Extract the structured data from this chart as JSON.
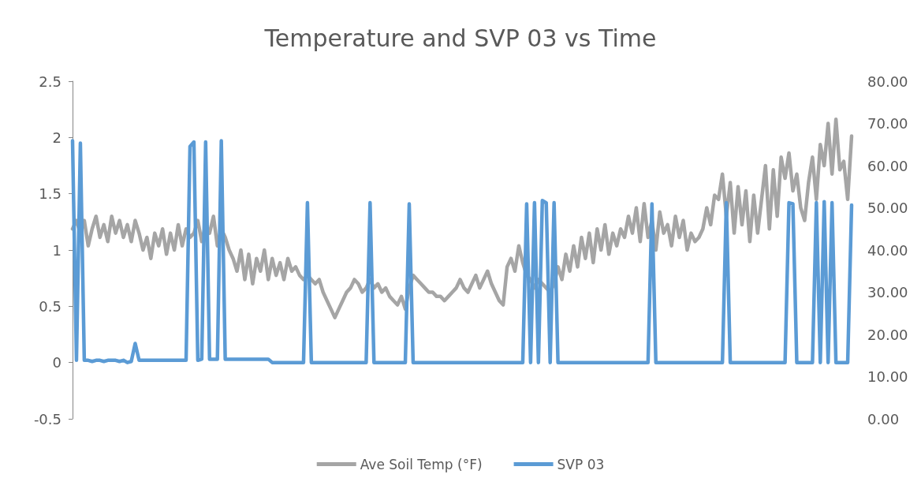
{
  "chart_data": {
    "type": "line",
    "title": "Temperature and SVP 03 vs Time",
    "categories": [
      null,
      null,
      null,
      null,
      null,
      null,
      null,
      null,
      null,
      null,
      null,
      null,
      null,
      null,
      null,
      null,
      null,
      null,
      null,
      null,
      null,
      null,
      null,
      null,
      null,
      null,
      null,
      null,
      null,
      null,
      null,
      null,
      null,
      null,
      null,
      null,
      null,
      null,
      null,
      null,
      null,
      null,
      null,
      null,
      null,
      null,
      null,
      null,
      null,
      null,
      null,
      null,
      null,
      null,
      null,
      null,
      null,
      null,
      null,
      null,
      null,
      null,
      null,
      null,
      null,
      null,
      null,
      null,
      null,
      null,
      null,
      null,
      null,
      null,
      null,
      null,
      null,
      null,
      null,
      null,
      null,
      null,
      null,
      null,
      null,
      null,
      null,
      null,
      null,
      null,
      null,
      null,
      null,
      null,
      null,
      null,
      null,
      null,
      null,
      null,
      null,
      null,
      null,
      null,
      null,
      null,
      null,
      null,
      null,
      null,
      null,
      null,
      null,
      null,
      null,
      null,
      null,
      null,
      null,
      null,
      null,
      null,
      null,
      null,
      null,
      null,
      null,
      null,
      null,
      null,
      null,
      null,
      null,
      null,
      null,
      null,
      null,
      null,
      null,
      null,
      null,
      null,
      null,
      null,
      null,
      null,
      null,
      null,
      null,
      null,
      null,
      null,
      null,
      null,
      null,
      null,
      null,
      null,
      null,
      null,
      null,
      null,
      null,
      null,
      null,
      null,
      null,
      null,
      null,
      null,
      null,
      null,
      null,
      null,
      null,
      null,
      null,
      null,
      null,
      null,
      null,
      null,
      null,
      null,
      null,
      null,
      null,
      null,
      null,
      null,
      null,
      null,
      null,
      null,
      null,
      null,
      null,
      null,
      null,
      null
    ],
    "series": [
      {
        "name": "Ave Soil Temp (°F)",
        "color": "#a5a5a5",
        "axis": "y2",
        "values": [
          45,
          47,
          44,
          47,
          41,
          45,
          48,
          43,
          46,
          42,
          48,
          44,
          47,
          43,
          46,
          42,
          47,
          44,
          40,
          43,
          38,
          44,
          41,
          45,
          39,
          44,
          40,
          46,
          41,
          45,
          43,
          44,
          47,
          42,
          46,
          44,
          48,
          41,
          45,
          43,
          40,
          38,
          35,
          40,
          33,
          39,
          32,
          38,
          35,
          40,
          33,
          38,
          34,
          37,
          33,
          38,
          35,
          36,
          34,
          33,
          34,
          33,
          32,
          33,
          30,
          28,
          26,
          24,
          26,
          28,
          30,
          31,
          33,
          32,
          30,
          31,
          33,
          31,
          32,
          30,
          31,
          29,
          28,
          27,
          29,
          26,
          31,
          34,
          33,
          32,
          31,
          30,
          30,
          29,
          29,
          28,
          29,
          30,
          31,
          33,
          31,
          30,
          32,
          34,
          31,
          33,
          35,
          32,
          30,
          28,
          27,
          36,
          38,
          35,
          41,
          37,
          34,
          33,
          31,
          33,
          32,
          31,
          30,
          32,
          36,
          33,
          39,
          35,
          41,
          36,
          43,
          38,
          44,
          37,
          45,
          40,
          46,
          39,
          44,
          41,
          45,
          43,
          48,
          44,
          50,
          42,
          51,
          43,
          47,
          40,
          49,
          44,
          46,
          41,
          48,
          43,
          47,
          40,
          44,
          42,
          43,
          45,
          50,
          46,
          53,
          52,
          58,
          48,
          56,
          44,
          55,
          46,
          54,
          42,
          53,
          44,
          52,
          60,
          45,
          59,
          48,
          62,
          57,
          63,
          54,
          58,
          50,
          47,
          56,
          62,
          52,
          65,
          60,
          70,
          58,
          71,
          59,
          61,
          52,
          67
        ]
      },
      {
        "name": "SVP 03",
        "color": "#5b9bd5",
        "values": [
          1.97,
          0.02,
          1.95,
          0.02,
          0.02,
          0.01,
          0.02,
          0.02,
          0.01,
          0.02,
          0.02,
          0.02,
          0.01,
          0.02,
          0.0,
          0.01,
          0.17,
          0.02,
          0.02,
          0.02,
          0.02,
          0.02,
          0.02,
          0.02,
          0.02,
          0.02,
          0.02,
          0.02,
          0.02,
          0.02,
          1.92,
          1.96,
          0.02,
          0.03,
          1.96,
          0.03,
          0.03,
          0.03,
          1.97,
          0.03,
          0.03,
          0.03,
          0.03,
          0.03,
          0.03,
          0.03,
          0.03,
          0.03,
          0.03,
          0.03,
          0.03,
          0.0,
          0.0,
          0.0,
          0.0,
          0.0,
          0.0,
          0.0,
          0.0,
          0.0,
          1.42,
          0.0,
          0.0,
          0.0,
          0.0,
          0.0,
          0.0,
          0.0,
          0.0,
          0.0,
          0.0,
          0.0,
          0.0,
          0.0,
          0.0,
          0.0,
          1.42,
          0.0,
          0.0,
          0.0,
          0.0,
          0.0,
          0.0,
          0.0,
          0.0,
          0.0,
          1.41,
          0.0,
          0.0,
          0.0,
          0.0,
          0.0,
          0.0,
          0.0,
          0.0,
          0.0,
          0.0,
          0.0,
          0.0,
          0.0,
          0.0,
          0.0,
          0.0,
          0.0,
          0.0,
          0.0,
          0.0,
          0.0,
          0.0,
          0.0,
          0.0,
          0.0,
          0.0,
          0.0,
          0.0,
          0.0,
          1.41,
          0.0,
          1.42,
          0.0,
          1.44,
          1.42,
          0.0,
          1.42,
          0.0,
          0.0,
          0.0,
          0.0,
          0.0,
          0.0,
          0.0,
          0.0,
          0.0,
          0.0,
          0.0,
          0.0,
          0.0,
          0.0,
          0.0,
          0.0,
          0.0,
          0.0,
          0.0,
          0.0,
          0.0,
          0.0,
          0.0,
          0.0,
          1.41,
          0.0,
          0.0,
          0.0,
          0.0,
          0.0,
          0.0,
          0.0,
          0.0,
          0.0,
          0.0,
          0.0,
          0.0,
          0.0,
          0.0,
          0.0,
          0.0,
          0.0,
          0.0,
          1.42,
          0.0,
          0.0,
          0.0,
          0.0,
          0.0,
          0.0,
          0.0,
          0.0,
          0.0,
          0.0,
          0.0,
          0.0,
          0.0,
          0.0,
          0.0,
          1.42,
          1.41,
          0.0,
          0.0,
          0.0,
          0.0,
          0.0,
          1.42,
          0.0,
          1.43,
          0.0,
          1.42,
          0.0,
          0.0,
          0.0,
          0.0,
          1.4
        ]
      }
    ],
    "ylim": [
      -0.5,
      2.5
    ],
    "yticks": [
      -0.5,
      0,
      0.5,
      1,
      1.5,
      2,
      2.5
    ],
    "y2lim": [
      0,
      80
    ],
    "y2ticks": [
      {
        "value": 0,
        "label": "0.00"
      },
      {
        "value": 10,
        "label": "10.00"
      },
      {
        "value": 20,
        "label": "20.00"
      },
      {
        "value": 30,
        "label": "30.00"
      },
      {
        "value": 40,
        "label": "40.00"
      },
      {
        "value": 50,
        "label": "50.00"
      },
      {
        "value": 60,
        "label": "60.00"
      },
      {
        "value": 70,
        "label": "70.00"
      },
      {
        "value": 80,
        "label": "80.00"
      }
    ],
    "grid": false,
    "legend": "bottom",
    "marker": "none",
    "line_style": "solid"
  }
}
